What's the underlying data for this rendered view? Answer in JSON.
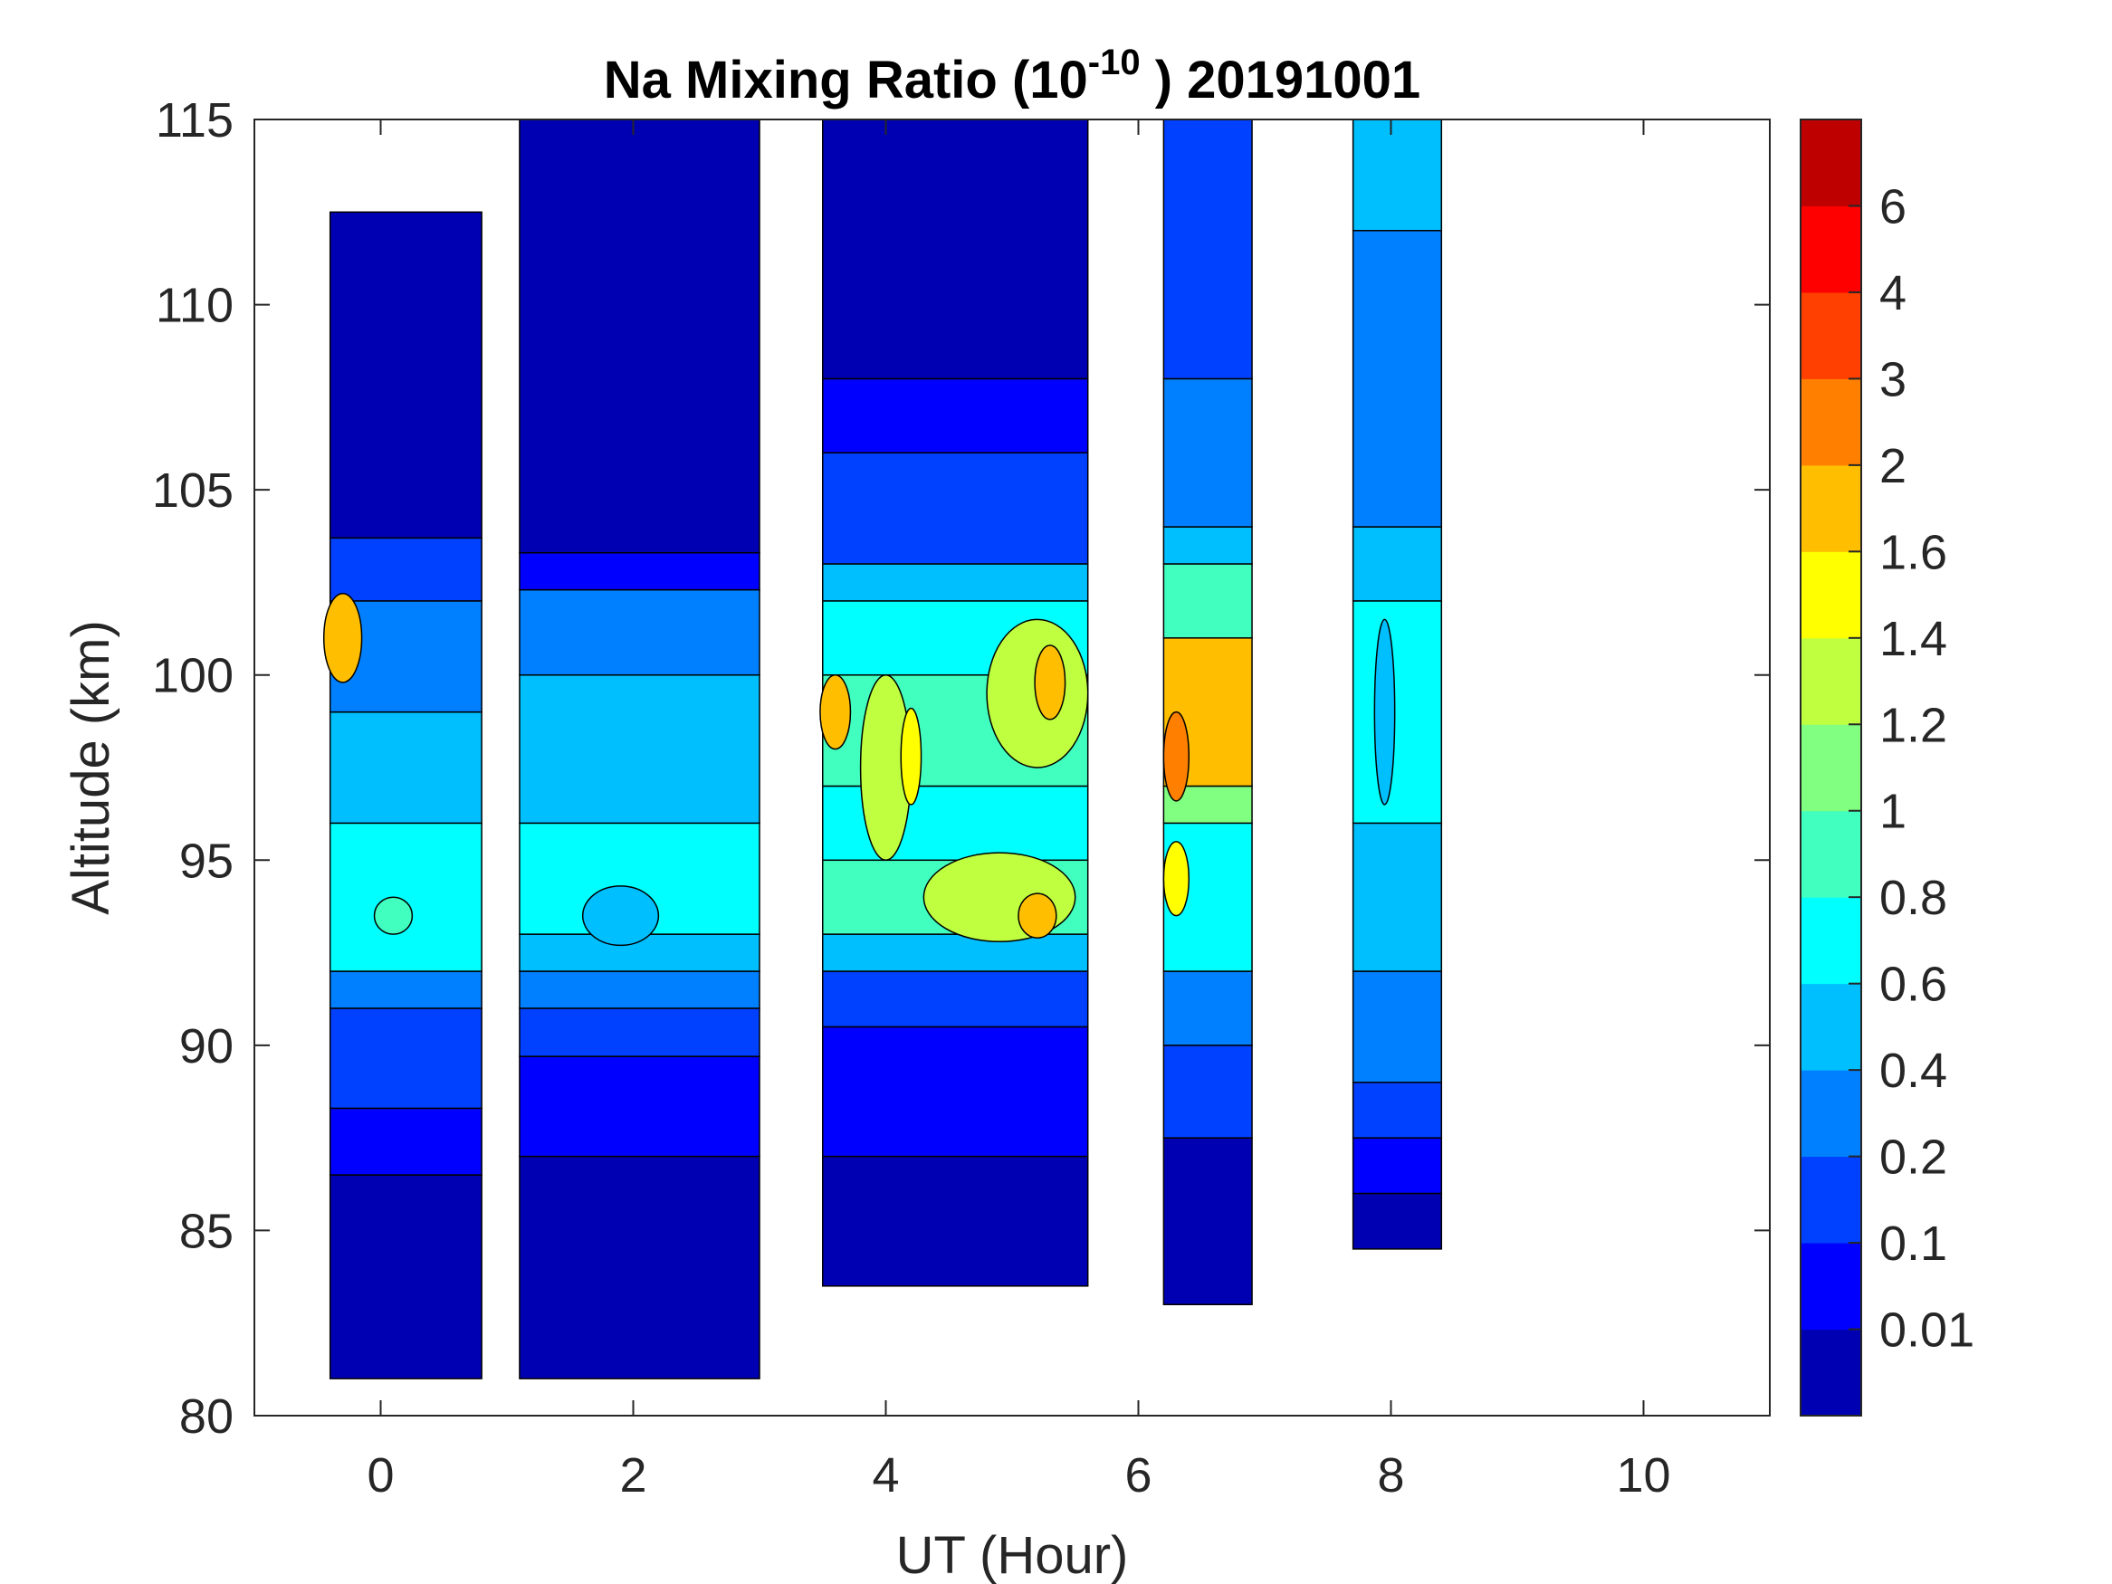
{
  "chart_data": {
    "type": "heatmap",
    "subtype": "filled-contour",
    "title": {
      "prefix": "Na Mixing Ratio (10",
      "exponent": "-10",
      "suffix": " ) 20191001"
    },
    "xlabel": "UT (Hour)",
    "ylabel": "Altitude (km)",
    "xlim": [
      -1,
      11
    ],
    "ylim": [
      80,
      115
    ],
    "xticks": [
      0,
      2,
      4,
      6,
      8,
      10
    ],
    "xtick_labels": [
      "0",
      "2",
      "4",
      "6",
      "8",
      "10"
    ],
    "yticks": [
      80,
      85,
      90,
      95,
      100,
      105,
      110,
      115
    ],
    "ytick_labels": [
      "80",
      "85",
      "90",
      "95",
      "100",
      "105",
      "110",
      "115"
    ],
    "colorbar": {
      "levels": [
        0.01,
        0.1,
        0.2,
        0.4,
        0.6,
        0.8,
        1,
        1.2,
        1.4,
        1.6,
        2,
        3,
        4,
        6
      ],
      "tick_labels": [
        "0.01",
        "0.1",
        "0.2",
        "0.4",
        "0.6",
        "0.8",
        "1",
        "1.2",
        "1.4",
        "1.6",
        "2",
        "3",
        "4",
        "6"
      ],
      "colors": [
        "#0000b3",
        "#0000ff",
        "#0040ff",
        "#0080ff",
        "#00bfff",
        "#00ffff",
        "#40ffbf",
        "#80ff80",
        "#bfff40",
        "#ffff00",
        "#ffbf00",
        "#ff8000",
        "#ff4000",
        "#ff0000",
        "#bf0000"
      ]
    },
    "segments": [
      {
        "x": [
          -0.4,
          0.8
        ],
        "bottom": 81,
        "top": 112.5,
        "bands": [
          [
            86.5,
            0
          ],
          [
            88.3,
            1
          ],
          [
            91,
            2
          ],
          [
            92,
            3
          ],
          [
            96,
            5
          ],
          [
            99,
            4
          ],
          [
            102,
            3
          ],
          [
            103.7,
            2
          ],
          [
            112.5,
            0
          ]
        ]
      },
      {
        "x": [
          1.1,
          3.0
        ],
        "bottom": 81,
        "top": 115,
        "bands": [
          [
            87,
            0
          ],
          [
            89.7,
            1
          ],
          [
            91,
            2
          ],
          [
            92,
            3
          ],
          [
            93,
            4
          ],
          [
            96,
            5
          ],
          [
            100,
            4
          ],
          [
            102.3,
            3
          ],
          [
            103.3,
            1
          ],
          [
            115,
            0
          ]
        ]
      },
      {
        "x": [
          3.5,
          5.6
        ],
        "bottom": 83.5,
        "top": 115,
        "bands": [
          [
            87,
            0
          ],
          [
            90.5,
            1
          ],
          [
            92,
            2
          ],
          [
            93,
            4
          ],
          [
            95,
            6
          ],
          [
            97,
            5
          ],
          [
            100,
            6
          ],
          [
            102,
            5
          ],
          [
            103,
            4
          ],
          [
            106,
            2
          ],
          [
            108,
            1
          ],
          [
            115,
            0
          ]
        ]
      },
      {
        "x": [
          6.2,
          6.9
        ],
        "bottom": 83,
        "top": 115,
        "bands": [
          [
            87.5,
            0
          ],
          [
            90,
            2
          ],
          [
            92,
            3
          ],
          [
            96,
            5
          ],
          [
            97,
            7
          ],
          [
            101,
            10
          ],
          [
            103,
            6
          ],
          [
            104,
            4
          ],
          [
            108,
            3
          ],
          [
            115,
            2
          ]
        ]
      },
      {
        "x": [
          7.7,
          8.4
        ],
        "bottom": 84.5,
        "top": 115,
        "bands": [
          [
            86,
            0
          ],
          [
            87.5,
            1
          ],
          [
            89,
            2
          ],
          [
            92,
            3
          ],
          [
            96,
            4
          ],
          [
            102,
            5
          ],
          [
            104,
            4
          ],
          [
            112,
            3
          ],
          [
            115,
            4
          ]
        ]
      }
    ],
    "features": [
      {
        "x": -0.3,
        "y": 101,
        "rx": 0.15,
        "ry": 1.2,
        "band": 10
      },
      {
        "x": 0.1,
        "y": 93.5,
        "rx": 0.15,
        "ry": 0.5,
        "band": 6
      },
      {
        "x": 1.9,
        "y": 93.5,
        "rx": 0.3,
        "ry": 0.8,
        "band": 4
      },
      {
        "x": 4.9,
        "y": 94,
        "rx": 0.6,
        "ry": 1.2,
        "band": 8
      },
      {
        "x": 5.2,
        "y": 93.5,
        "rx": 0.15,
        "ry": 0.6,
        "band": 10
      },
      {
        "x": 5.2,
        "y": 99.5,
        "rx": 0.4,
        "ry": 2,
        "band": 8
      },
      {
        "x": 5.3,
        "y": 99.8,
        "rx": 0.12,
        "ry": 1,
        "band": 10
      },
      {
        "x": 3.6,
        "y": 99,
        "rx": 0.12,
        "ry": 1,
        "band": 10
      },
      {
        "x": 4.0,
        "y": 97.5,
        "rx": 0.2,
        "ry": 2.5,
        "band": 8
      },
      {
        "x": 4.2,
        "y": 97.8,
        "rx": 0.08,
        "ry": 1.3,
        "band": 9
      },
      {
        "x": 6.3,
        "y": 97.8,
        "rx": 0.1,
        "ry": 1.2,
        "band": 11
      },
      {
        "x": 6.3,
        "y": 94.5,
        "rx": 0.1,
        "ry": 1,
        "band": 9
      },
      {
        "x": 7.95,
        "y": 99,
        "rx": 0.08,
        "ry": 2.5,
        "band": 4
      }
    ]
  }
}
